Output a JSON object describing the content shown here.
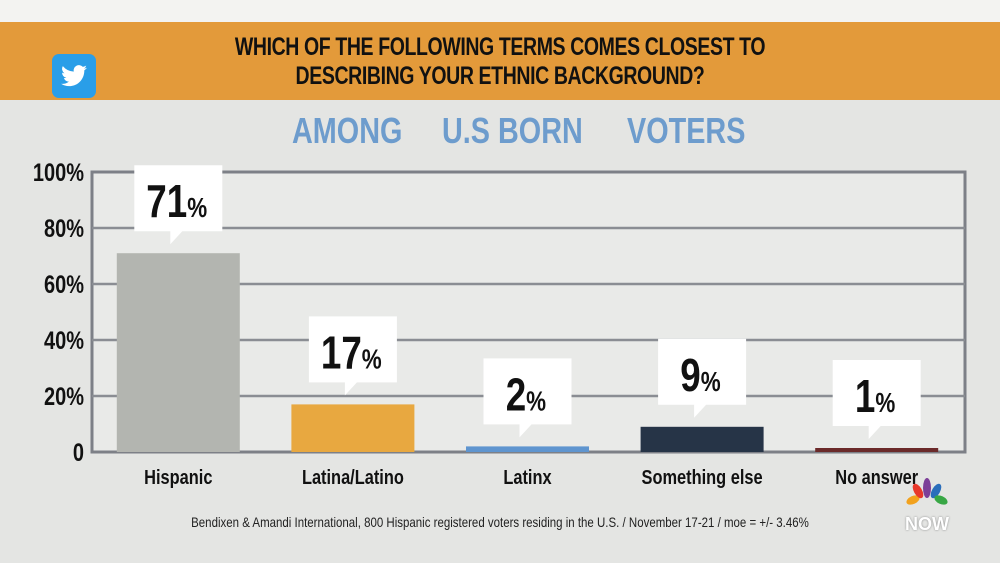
{
  "header": {
    "title_line1": "WHICH OF THE FOLLOWING TERMS COMES CLOSEST TO",
    "title_line2": "DESCRIBING YOUR ETHNIC BACKGROUND?",
    "subtitle_words": [
      "AMONG",
      "U.S BORN",
      "VOTERS"
    ],
    "twitter_icon": "twitter-bird-icon",
    "banner_color": "#e39a3a"
  },
  "footer": {
    "source": "Bendixen & Amandi International, 800 Hispanic registered voters residing in the U.S. / November 17-21 / moe = +/- 3.46%",
    "logo_text": "NOW"
  },
  "chart_data": {
    "type": "bar",
    "title": "WHICH OF THE FOLLOWING TERMS COMES CLOSEST TO DESCRIBING YOUR ETHNIC BACKGROUND?",
    "subtitle": "AMONG U.S BORN VOTERS",
    "categories": [
      "Hispanic",
      "Latina/Latino",
      "Latinx",
      "Something else",
      "No answer"
    ],
    "values": [
      71,
      17,
      2,
      9,
      1
    ],
    "data_labels": [
      "71",
      "17",
      "2",
      "9",
      "1"
    ],
    "label_suffix": "%",
    "colors": [
      "#b3b5b0",
      "#e8a840",
      "#5f95cf",
      "#263447",
      "#6b2a2a"
    ],
    "yticks": [
      "0",
      "20%",
      "40%",
      "60%",
      "80%",
      "100%"
    ],
    "ylim": [
      0,
      100
    ],
    "grid": true,
    "xlabel": "",
    "ylabel": ""
  }
}
